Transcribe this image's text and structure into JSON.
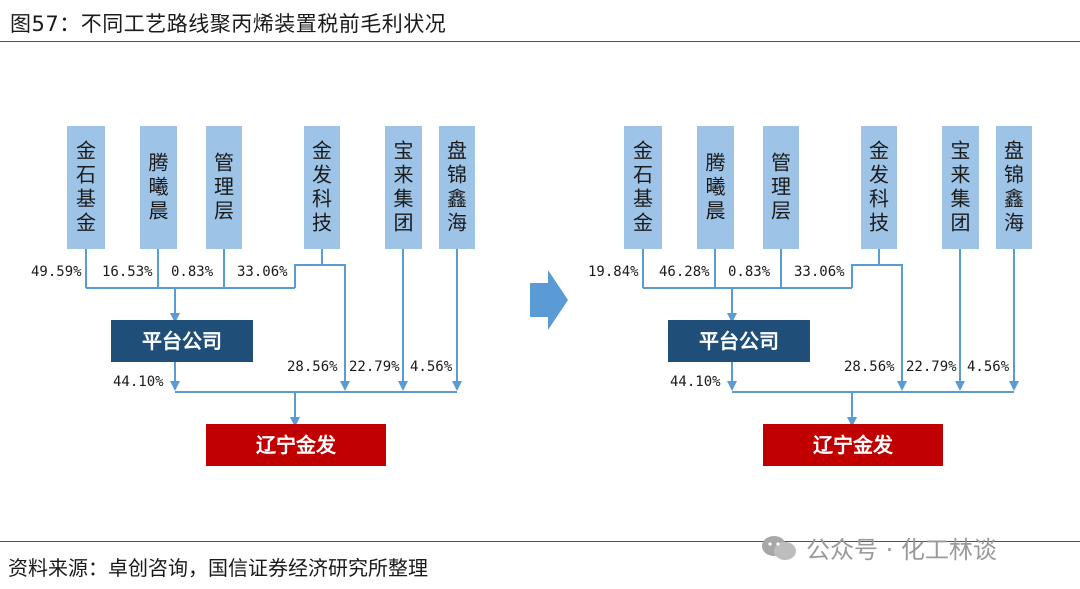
{
  "title": "图57：不同工艺路线聚丙烯装置税前毛利状况",
  "source": "资料来源：卓创咨询，国信证券经济研究所整理",
  "watermark": "公众号 · 化工林谈",
  "colors": {
    "shareholder_box": "#9dc3e6",
    "platform_box": "#1f4e79",
    "target_box": "#c00000",
    "line": "#5b9bd5",
    "arrow": "#5b9bd5"
  },
  "left": {
    "shareholders": [
      {
        "name": "金石基金",
        "pct": "49.59%"
      },
      {
        "name": "腾曦晨",
        "pct": "16.53%"
      },
      {
        "name": "管理层",
        "pct": "0.83%"
      },
      {
        "name": "金发科技",
        "pct": "33.06%"
      },
      {
        "name": "宝来集团",
        "pct": "22.79%"
      },
      {
        "name": "盘锦鑫海",
        "pct": "4.56%"
      }
    ],
    "platform": {
      "name": "平台公司",
      "pct": "44.10%"
    },
    "jinfa_direct_pct": "28.56%",
    "target": "辽宁金发"
  },
  "right": {
    "shareholders": [
      {
        "name": "金石基金",
        "pct": "19.84%"
      },
      {
        "name": "腾曦晨",
        "pct": "46.28%"
      },
      {
        "name": "管理层",
        "pct": "0.83%"
      },
      {
        "name": "金发科技",
        "pct": "33.06%"
      },
      {
        "name": "宝来集团",
        "pct": "22.79%"
      },
      {
        "name": "盘锦鑫海",
        "pct": "4.56%"
      }
    ],
    "platform": {
      "name": "平台公司",
      "pct": "44.10%"
    },
    "jinfa_direct_pct": "28.56%",
    "target": "辽宁金发"
  }
}
